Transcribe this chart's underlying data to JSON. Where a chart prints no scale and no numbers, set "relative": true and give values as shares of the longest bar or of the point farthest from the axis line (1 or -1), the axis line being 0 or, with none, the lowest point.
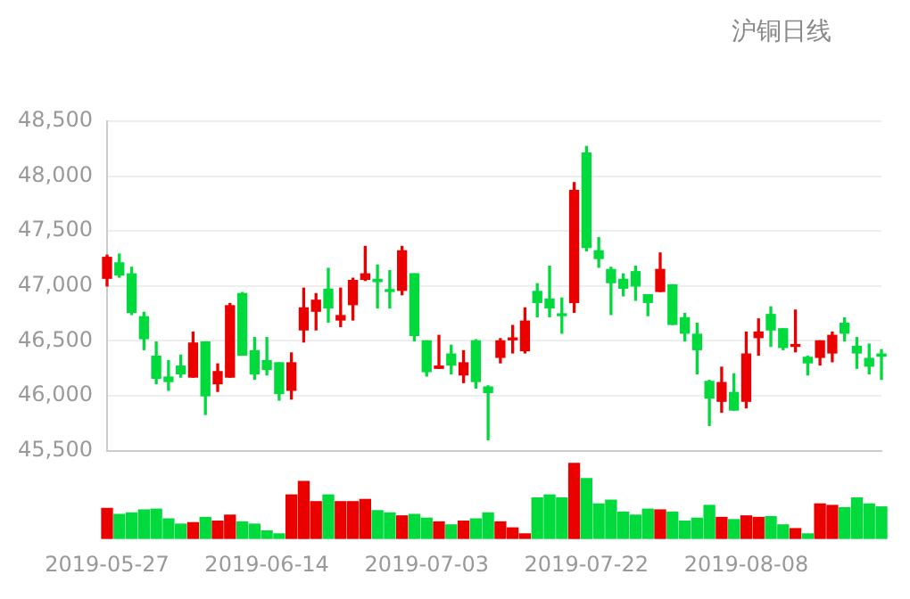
{
  "chart_data": [
    {
      "type": "candlestick",
      "title": "沪铜日线",
      "categories": [
        "2019-05-27",
        null,
        null,
        null,
        null,
        null,
        null,
        null,
        null,
        null,
        null,
        null,
        null,
        "2019-06-14",
        null,
        null,
        null,
        null,
        null,
        null,
        null,
        null,
        null,
        null,
        null,
        null,
        "2019-07-03",
        null,
        null,
        null,
        null,
        null,
        null,
        null,
        null,
        null,
        null,
        null,
        null,
        "2019-07-22",
        null,
        null,
        null,
        null,
        null,
        null,
        null,
        null,
        null,
        null,
        null,
        null,
        "2019-08-08",
        null,
        null,
        null,
        null,
        null,
        null,
        null,
        null,
        null,
        null,
        null
      ],
      "ohlc": [
        [
          47070,
          47280,
          47000,
          47260
        ],
        [
          47210,
          47290,
          47080,
          47100
        ],
        [
          47110,
          47170,
          46740,
          46760
        ],
        [
          46720,
          46760,
          46420,
          46520
        ],
        [
          46360,
          46490,
          46110,
          46160
        ],
        [
          46170,
          46320,
          46050,
          46130
        ],
        [
          46270,
          46370,
          46170,
          46200
        ],
        [
          46170,
          46580,
          46170,
          46480
        ],
        [
          46490,
          46490,
          45830,
          46000
        ],
        [
          46110,
          46290,
          46040,
          46220
        ],
        [
          46170,
          46840,
          46170,
          46820
        ],
        [
          46930,
          46940,
          46370,
          46370
        ],
        [
          46410,
          46530,
          46150,
          46200
        ],
        [
          46320,
          46530,
          46190,
          46240
        ],
        [
          46300,
          46300,
          45960,
          46020
        ],
        [
          46050,
          46390,
          45970,
          46300
        ],
        [
          46600,
          46980,
          46490,
          46800
        ],
        [
          46770,
          46930,
          46600,
          46870
        ],
        [
          46970,
          47160,
          46670,
          46800
        ],
        [
          46690,
          46980,
          46630,
          46730
        ],
        [
          46830,
          47070,
          46690,
          47050
        ],
        [
          47060,
          47360,
          47050,
          47110
        ],
        [
          47060,
          47190,
          46800,
          47040
        ],
        [
          46960,
          47140,
          46800,
          46950
        ],
        [
          46960,
          47360,
          46920,
          47320
        ],
        [
          47110,
          47110,
          46500,
          46550
        ],
        [
          46500,
          46500,
          46180,
          46220
        ],
        [
          46250,
          46550,
          46250,
          46270
        ],
        [
          46380,
          46460,
          46200,
          46280
        ],
        [
          46190,
          46410,
          46120,
          46300
        ],
        [
          46500,
          46510,
          46070,
          46130
        ],
        [
          46080,
          46090,
          45600,
          46030
        ],
        [
          46350,
          46520,
          46300,
          46500
        ],
        [
          46510,
          46640,
          46390,
          46520
        ],
        [
          46410,
          46800,
          46390,
          46680
        ],
        [
          46950,
          47020,
          46720,
          46850
        ],
        [
          46880,
          47180,
          46720,
          46800
        ],
        [
          46740,
          46890,
          46570,
          46730
        ],
        [
          46850,
          47940,
          46760,
          47870
        ],
        [
          48210,
          48270,
          47320,
          47350
        ],
        [
          47320,
          47440,
          47170,
          47250
        ],
        [
          47150,
          47170,
          46740,
          47030
        ],
        [
          47060,
          47110,
          46910,
          46980
        ],
        [
          47130,
          47180,
          46870,
          47000
        ],
        [
          46920,
          46920,
          46730,
          46850
        ],
        [
          46950,
          47300,
          46950,
          47150
        ],
        [
          47010,
          47010,
          46650,
          46650
        ],
        [
          46710,
          46750,
          46500,
          46570
        ],
        [
          46560,
          46660,
          46200,
          46420
        ],
        [
          46130,
          46140,
          45730,
          45980
        ],
        [
          45950,
          46260,
          45850,
          46120
        ],
        [
          46030,
          46200,
          45870,
          45870
        ],
        [
          45950,
          46580,
          45890,
          46380
        ],
        [
          46530,
          46700,
          46370,
          46580
        ],
        [
          46740,
          46810,
          46450,
          46600
        ],
        [
          46610,
          46610,
          46420,
          46440
        ],
        [
          46450,
          46780,
          46400,
          46460
        ],
        [
          46350,
          46360,
          46190,
          46300
        ],
        [
          46350,
          46500,
          46280,
          46500
        ],
        [
          46390,
          46580,
          46310,
          46550
        ],
        [
          46660,
          46710,
          46500,
          46570
        ],
        [
          46450,
          46530,
          46250,
          46390
        ],
        [
          46340,
          46470,
          46200,
          46270
        ],
        [
          46380,
          46420,
          46150,
          46360
        ]
      ],
      "colors": [
        "#eb0000",
        "#00da3c",
        "#00da3c",
        "#00da3c",
        "#00da3c",
        "#00da3c",
        "#00da3c",
        "#eb0000",
        "#00da3c",
        "#eb0000",
        "#eb0000",
        "#00da3c",
        "#00da3c",
        "#00da3c",
        "#00da3c",
        "#eb0000",
        "#eb0000",
        "#eb0000",
        "#00da3c",
        "#eb0000",
        "#eb0000",
        "#eb0000",
        "#00da3c",
        "#00da3c",
        "#eb0000",
        "#00da3c",
        "#00da3c",
        "#eb0000",
        "#00da3c",
        "#eb0000",
        "#00da3c",
        "#00da3c",
        "#eb0000",
        "#eb0000",
        "#eb0000",
        "#00da3c",
        "#00da3c",
        "#00da3c",
        "#eb0000",
        "#00da3c",
        "#00da3c",
        "#00da3c",
        "#00da3c",
        "#00da3c",
        "#00da3c",
        "#eb0000",
        "#00da3c",
        "#00da3c",
        "#00da3c",
        "#00da3c",
        "#eb0000",
        "#00da3c",
        "#eb0000",
        "#eb0000",
        "#00da3c",
        "#00da3c",
        "#eb0000",
        "#00da3c",
        "#eb0000",
        "#eb0000",
        "#00da3c",
        "#00da3c",
        "#00da3c",
        "#00da3c"
      ],
      "ylim": [
        45500,
        48500
      ],
      "yticks": [
        {
          "value": 45500,
          "label": "45,500"
        },
        {
          "value": 46000,
          "label": "46,000"
        },
        {
          "value": 46500,
          "label": "46,500"
        },
        {
          "value": 47000,
          "label": "47,000"
        },
        {
          "value": 47500,
          "label": "47,500"
        },
        {
          "value": 48000,
          "label": "48,000"
        },
        {
          "value": 48500,
          "label": "48,500"
        }
      ],
      "grid": "y",
      "tick_labels": "y"
    },
    {
      "type": "bar",
      "relative": true,
      "tick_labels": "x",
      "categories": [
        "2019-05-27",
        null,
        null,
        null,
        null,
        null,
        null,
        null,
        null,
        null,
        null,
        null,
        null,
        "2019-06-14",
        null,
        null,
        null,
        null,
        null,
        null,
        null,
        null,
        null,
        null,
        null,
        null,
        "2019-07-03",
        null,
        null,
        null,
        null,
        null,
        null,
        null,
        null,
        null,
        null,
        null,
        null,
        "2019-07-22",
        null,
        null,
        null,
        null,
        null,
        null,
        null,
        null,
        null,
        null,
        null,
        null,
        "2019-08-08",
        null,
        null,
        null,
        null,
        null,
        null,
        null,
        null,
        null,
        null,
        null
      ],
      "values": [
        0.4,
        0.32,
        0.34,
        0.38,
        0.39,
        0.26,
        0.19,
        0.21,
        0.28,
        0.23,
        0.31,
        0.22,
        0.19,
        0.1,
        0.06,
        0.58,
        0.76,
        0.49,
        0.58,
        0.49,
        0.49,
        0.52,
        0.37,
        0.34,
        0.3,
        0.32,
        0.27,
        0.22,
        0.18,
        0.23,
        0.26,
        0.34,
        0.22,
        0.14,
        0.06,
        0.54,
        0.58,
        0.54,
        1,
        0.8,
        0.46,
        0.51,
        0.35,
        0.31,
        0.39,
        0.38,
        0.35,
        0.23,
        0.27,
        0.44,
        0.28,
        0.25,
        0.3,
        0.28,
        0.29,
        0.18,
        0.13,
        0.06,
        0.46,
        0.44,
        0.41,
        0.54,
        0.46,
        0.42
      ],
      "colors": [
        "#eb0000",
        "#00da3c",
        "#00da3c",
        "#00da3c",
        "#00da3c",
        "#00da3c",
        "#00da3c",
        "#eb0000",
        "#00da3c",
        "#eb0000",
        "#eb0000",
        "#00da3c",
        "#00da3c",
        "#00da3c",
        "#00da3c",
        "#eb0000",
        "#eb0000",
        "#eb0000",
        "#00da3c",
        "#eb0000",
        "#eb0000",
        "#eb0000",
        "#00da3c",
        "#00da3c",
        "#eb0000",
        "#00da3c",
        "#00da3c",
        "#eb0000",
        "#00da3c",
        "#eb0000",
        "#00da3c",
        "#00da3c",
        "#eb0000",
        "#eb0000",
        "#eb0000",
        "#00da3c",
        "#00da3c",
        "#00da3c",
        "#eb0000",
        "#00da3c",
        "#00da3c",
        "#00da3c",
        "#00da3c",
        "#00da3c",
        "#00da3c",
        "#eb0000",
        "#00da3c",
        "#00da3c",
        "#00da3c",
        "#00da3c",
        "#eb0000",
        "#00da3c",
        "#eb0000",
        "#eb0000",
        "#00da3c",
        "#00da3c",
        "#eb0000",
        "#00da3c",
        "#eb0000",
        "#eb0000",
        "#00da3c",
        "#00da3c",
        "#00da3c",
        "#00da3c"
      ]
    }
  ]
}
